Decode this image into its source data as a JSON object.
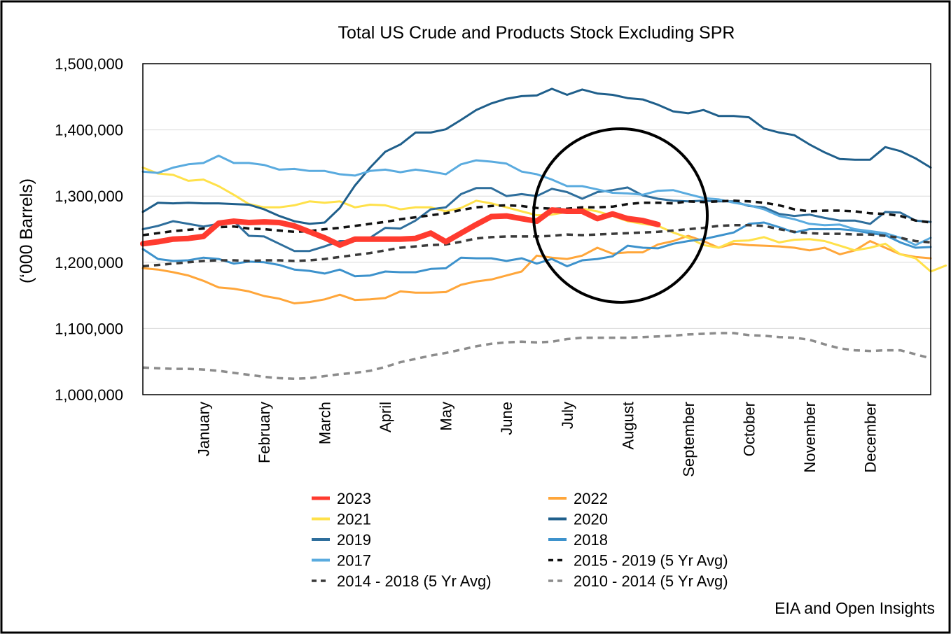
{
  "source": "EIA and Open Insights",
  "chart_data": {
    "type": "line",
    "title": "Total US Crude and Products Stock Excluding SPR",
    "ylabel": "(‘000 Barrels)",
    "xlabel": "",
    "ylim": [
      1000000,
      1500000
    ],
    "yticks": [
      1000000,
      1100000,
      1200000,
      1300000,
      1400000,
      1500000
    ],
    "ytick_labels": [
      "1,000,000",
      "1,100,000",
      "1,200,000",
      "1,300,000",
      "1,400,000",
      "1,500,000"
    ],
    "months": [
      "January",
      "February",
      "March",
      "April",
      "May",
      "June",
      "July",
      "August",
      "September",
      "October",
      "November",
      "December"
    ],
    "x_unit": "week of year",
    "xlim": [
      1,
      53
    ],
    "grid": true,
    "legend_position": "bottom",
    "annotation": "circle highlighting July–September",
    "series": [
      {
        "name": "2023",
        "color": "#ff3b2f",
        "width": 8,
        "dash": "",
        "start_week": 1,
        "values": [
          1228000,
          1231000,
          1235000,
          1236000,
          1239000,
          1259000,
          1262000,
          1260000,
          1261000,
          1260000,
          1255000,
          1246000,
          1237000,
          1226000,
          1235000,
          1235000,
          1235000,
          1235000,
          1236000,
          1244000,
          1231000,
          1244000,
          1257000,
          1269000,
          1270000,
          1266000,
          1262000,
          1279000,
          1277000,
          1277000,
          1266000,
          1273000,
          1266000,
          1263000,
          1257000
        ]
      },
      {
        "name": "2022",
        "color": "#ffa63a",
        "width": 3,
        "dash": "",
        "start_week": 1,
        "values": [
          1191000,
          1189000,
          1185000,
          1180000,
          1172000,
          1162000,
          1160000,
          1156000,
          1149000,
          1145000,
          1138000,
          1140000,
          1144000,
          1151000,
          1143000,
          1144000,
          1146000,
          1156000,
          1154000,
          1154000,
          1155000,
          1166000,
          1171000,
          1174000,
          1180000,
          1186000,
          1210000,
          1207000,
          1205000,
          1210000,
          1222000,
          1213000,
          1215000,
          1215000,
          1227000,
          1232000,
          1240000,
          1232000,
          1222000,
          1228000,
          1226000,
          1225000,
          1224000,
          1222000,
          1218000,
          1222000,
          1212000,
          1218000,
          1232000,
          1222000,
          1212000,
          1208000,
          1206000
        ]
      },
      {
        "name": "2021",
        "color": "#ffe14a",
        "width": 3,
        "dash": "",
        "start_week": 1,
        "values": [
          1343000,
          1334000,
          1332000,
          1323000,
          1325000,
          1315000,
          1302000,
          1288000,
          1283000,
          1283000,
          1286000,
          1292000,
          1290000,
          1292000,
          1283000,
          1287000,
          1286000,
          1280000,
          1283000,
          1283000,
          1277000,
          1282000,
          1293000,
          1289000,
          1283000,
          1277000,
          1271000,
          1272000,
          1276000,
          1281000,
          1277000,
          1270000,
          1262000,
          1258000,
          1255000,
          1245000,
          1237000,
          1226000,
          1222000,
          1232000,
          1233000,
          1238000,
          1230000,
          1234000,
          1235000,
          1232000,
          1225000,
          1218000,
          1222000,
          1228000,
          1212000,
          1206000,
          1186000,
          1195000
        ]
      },
      {
        "name": "2020",
        "color": "#1f5f8b",
        "width": 3,
        "dash": "",
        "start_week": 1,
        "values": [
          1276000,
          1290000,
          1289000,
          1290000,
          1289000,
          1289000,
          1288000,
          1287000,
          1280000,
          1270000,
          1262000,
          1258000,
          1260000,
          1282000,
          1316000,
          1343000,
          1367000,
          1378000,
          1396000,
          1396000,
          1401000,
          1415000,
          1430000,
          1440000,
          1447000,
          1451000,
          1452000,
          1462000,
          1453000,
          1461000,
          1455000,
          1453000,
          1448000,
          1446000,
          1438000,
          1428000,
          1425000,
          1430000,
          1421000,
          1421000,
          1419000,
          1402000,
          1396000,
          1392000,
          1378000,
          1366000,
          1356000,
          1355000,
          1355000,
          1374000,
          1368000,
          1357000,
          1343000
        ]
      },
      {
        "name": "2019",
        "color": "#2e6e9c",
        "width": 3,
        "dash": "",
        "start_week": 1,
        "values": [
          1250000,
          1255000,
          1262000,
          1258000,
          1254000,
          1258000,
          1262000,
          1240000,
          1239000,
          1228000,
          1217000,
          1217000,
          1224000,
          1232000,
          1232000,
          1237000,
          1252000,
          1251000,
          1263000,
          1280000,
          1283000,
          1303000,
          1312000,
          1312000,
          1300000,
          1303000,
          1300000,
          1311000,
          1306000,
          1296000,
          1306000,
          1309000,
          1313000,
          1301000,
          1296000,
          1293000,
          1292000,
          1293000,
          1292000,
          1292000,
          1285000,
          1283000,
          1273000,
          1270000,
          1272000,
          1267000,
          1263000,
          1263000,
          1258000,
          1276000,
          1275000,
          1263000,
          1261000
        ]
      },
      {
        "name": "2018",
        "color": "#3d92cc",
        "width": 3,
        "dash": "",
        "start_week": 1,
        "values": [
          1220000,
          1205000,
          1202000,
          1203000,
          1207000,
          1205000,
          1198000,
          1201000,
          1200000,
          1196000,
          1189000,
          1187000,
          1183000,
          1189000,
          1179000,
          1180000,
          1186000,
          1185000,
          1185000,
          1190000,
          1191000,
          1207000,
          1206000,
          1206000,
          1202000,
          1206000,
          1198000,
          1205000,
          1194000,
          1203000,
          1205000,
          1209000,
          1225000,
          1222000,
          1221000,
          1228000,
          1232000,
          1235000,
          1240000,
          1245000,
          1258000,
          1260000,
          1253000,
          1245000,
          1250000,
          1250000,
          1250000,
          1248000,
          1244000,
          1241000,
          1230000,
          1222000,
          1223000
        ]
      },
      {
        "name": "2017",
        "color": "#5aabdf",
        "width": 3,
        "dash": "",
        "start_week": 1,
        "values": [
          1337000,
          1335000,
          1343000,
          1348000,
          1350000,
          1361000,
          1350000,
          1350000,
          1347000,
          1340000,
          1341000,
          1338000,
          1338000,
          1333000,
          1331000,
          1338000,
          1340000,
          1336000,
          1340000,
          1337000,
          1333000,
          1348000,
          1354000,
          1352000,
          1349000,
          1337000,
          1333000,
          1325000,
          1315000,
          1315000,
          1310000,
          1305000,
          1304000,
          1302000,
          1308000,
          1309000,
          1303000,
          1297000,
          1295000,
          1290000,
          1286000,
          1280000,
          1270000,
          1265000,
          1258000,
          1256000,
          1257000,
          1250000,
          1247000,
          1244000,
          1237000,
          1226000,
          1237000
        ]
      },
      {
        "name": "2015 - 2019 (5 Yr Avg)",
        "color": "#111111",
        "width": 3.5,
        "dash": "9,7",
        "start_week": 1,
        "values": [
          1241000,
          1244000,
          1247000,
          1249000,
          1251000,
          1253000,
          1254000,
          1251000,
          1250000,
          1248000,
          1246000,
          1247000,
          1250000,
          1252000,
          1255000,
          1258000,
          1261000,
          1265000,
          1268000,
          1271000,
          1274000,
          1279000,
          1283000,
          1285000,
          1286000,
          1285000,
          1282000,
          1281000,
          1281000,
          1283000,
          1283000,
          1284000,
          1288000,
          1290000,
          1290000,
          1289000,
          1292000,
          1291000,
          1292000,
          1293000,
          1292000,
          1290000,
          1286000,
          1280000,
          1277000,
          1278000,
          1278000,
          1277000,
          1274000,
          1273000,
          1270000,
          1263000,
          1260000
        ]
      },
      {
        "name": "2014 - 2018 (5 Yr Avg)",
        "color": "#3a3a3a",
        "width": 3.5,
        "dash": "9,7",
        "start_week": 1,
        "values": [
          1194000,
          1196000,
          1198000,
          1200000,
          1202000,
          1203000,
          1203000,
          1202000,
          1203000,
          1203000,
          1202000,
          1203000,
          1205000,
          1208000,
          1211000,
          1214000,
          1218000,
          1222000,
          1224000,
          1226000,
          1227000,
          1231000,
          1236000,
          1238000,
          1239000,
          1239000,
          1239000,
          1240000,
          1242000,
          1241000,
          1242000,
          1243000,
          1244000,
          1245000,
          1246000,
          1248000,
          1250000,
          1252000,
          1255000,
          1256000,
          1256000,
          1255000,
          1250000,
          1246000,
          1244000,
          1243000,
          1243000,
          1242000,
          1242000,
          1240000,
          1237000,
          1232000,
          1230000
        ]
      },
      {
        "name": "2010 - 2014 (5 Yr Avg)",
        "color": "#8c8c8c",
        "width": 3.5,
        "dash": "9,7",
        "start_week": 1,
        "values": [
          1041000,
          1040000,
          1039000,
          1039000,
          1038000,
          1036000,
          1033000,
          1030000,
          1027000,
          1025000,
          1024000,
          1025000,
          1028000,
          1031000,
          1033000,
          1036000,
          1042000,
          1049000,
          1054000,
          1059000,
          1063000,
          1068000,
          1073000,
          1077000,
          1079000,
          1080000,
          1079000,
          1080000,
          1084000,
          1086000,
          1086000,
          1086000,
          1086000,
          1087000,
          1088000,
          1089000,
          1091000,
          1092000,
          1093000,
          1093000,
          1090000,
          1089000,
          1087000,
          1086000,
          1083000,
          1076000,
          1070000,
          1067000,
          1066000,
          1067000,
          1067000,
          1061000,
          1055000
        ]
      }
    ]
  }
}
